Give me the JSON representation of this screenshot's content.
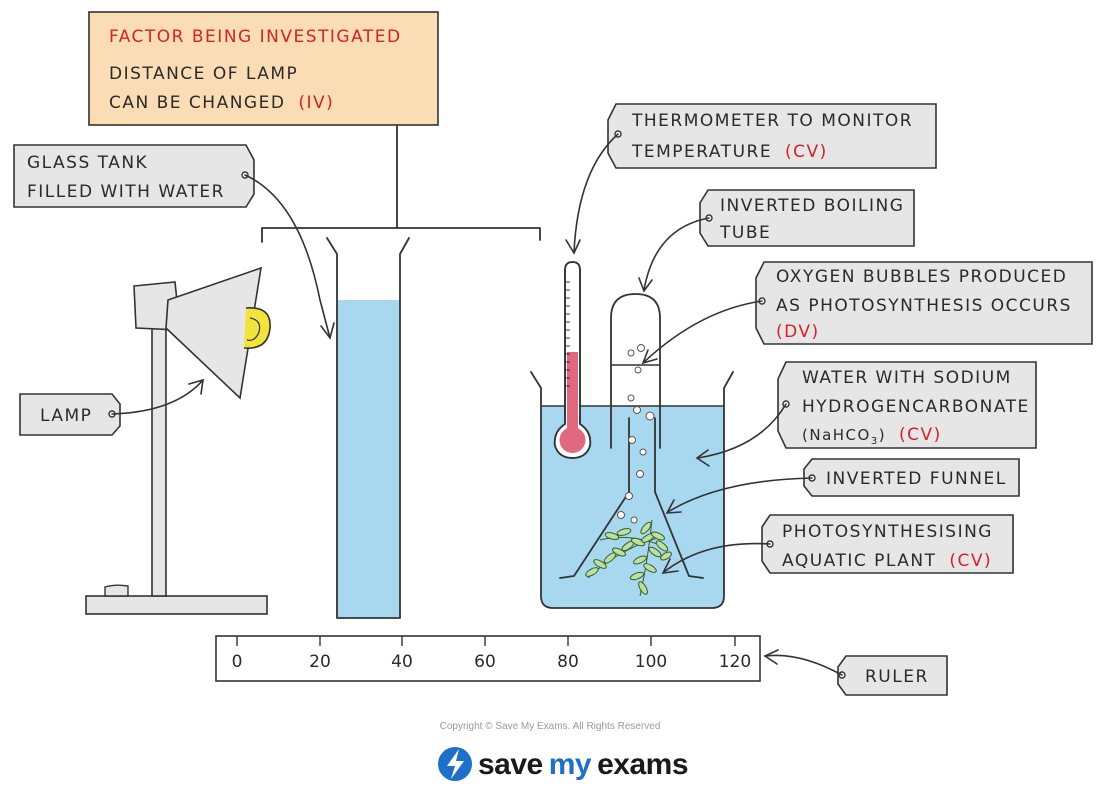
{
  "labels": {
    "factor_title": "FACTOR BEING INVESTIGATED",
    "factor_line1": "DISTANCE OF LAMP",
    "factor_line2": "CAN BE CHANGED",
    "factor_tag": "(IV)",
    "glass_tank_1": "GLASS TANK",
    "glass_tank_2": "FILLED WITH WATER",
    "lamp": "LAMP",
    "thermometer_1": "THERMOMETER TO MONITOR",
    "thermometer_2": "TEMPERATURE",
    "thermometer_tag": "(CV)",
    "boiling_tube_1": "INVERTED BOILING",
    "boiling_tube_2": "TUBE",
    "oxygen_1": "OXYGEN BUBBLES PRODUCED",
    "oxygen_2": "AS PHOTOSYNTHESIS OCCURS",
    "oxygen_tag": "(DV)",
    "water_1": "WATER WITH SODIUM",
    "water_2": "HYDROGENCARBONATE",
    "water_3_a": "(NaHCO",
    "water_3_sub": "3",
    "water_3_b": ")",
    "water_tag": "(CV)",
    "funnel": "INVERTED FUNNEL",
    "plant_1": "PHOTOSYNTHESISING",
    "plant_2": "AQUATIC PLANT",
    "plant_tag": "(CV)",
    "ruler": "RULER"
  },
  "ruler_ticks": [
    "0",
    "20",
    "40",
    "60",
    "80",
    "100",
    "120"
  ],
  "footer": {
    "copyright": "Copyright © Save My Exams. All Rights Reserved",
    "brand_save": "save",
    "brand_my": "my",
    "brand_exams": "exams"
  },
  "colors": {
    "water": "#a8d8f0",
    "box_fill": "#e6e6e6",
    "factor_fill": "#fbddb5",
    "accent_red": "#d62027",
    "thermo_red": "#e0697f",
    "brand_blue": "#1e6fc8",
    "plant_green": "#b9e2a0"
  }
}
